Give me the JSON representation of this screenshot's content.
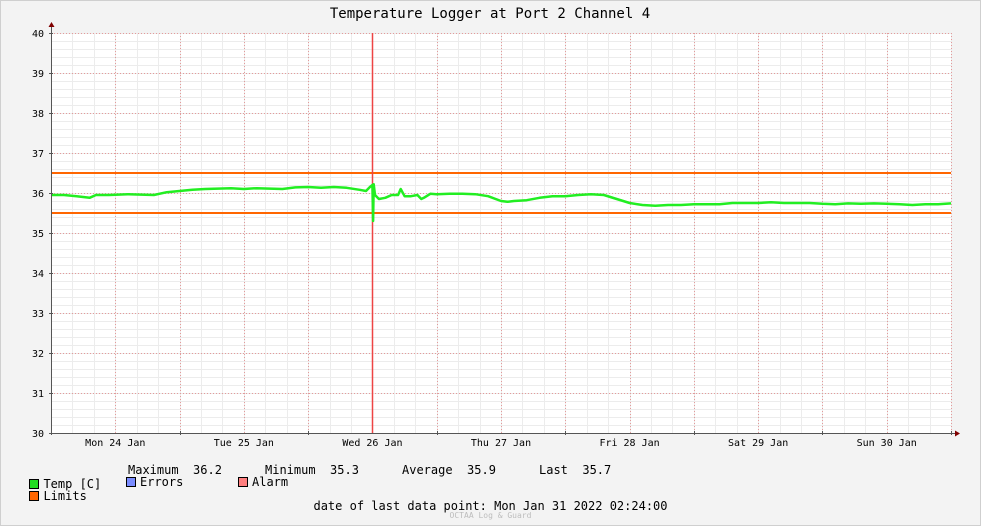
{
  "chart_data": {
    "type": "line",
    "title": "Temperature Logger at Port 2 Channel 4",
    "ylim": [
      30,
      40
    ],
    "y_ticks": [
      30,
      31,
      32,
      33,
      34,
      35,
      36,
      37,
      38,
      39,
      40
    ],
    "x_labels": [
      "Mon 24 Jan",
      "Tue 25 Jan",
      "Wed 26 Jan",
      "Thu 27 Jan",
      "Fri 28 Jan",
      "Sat 29 Jan",
      "Sun 30 Jan"
    ],
    "x_days_range": [
      0,
      7
    ],
    "limits": [
      35.5,
      36.5
    ],
    "alarm_event_day": 2.5,
    "series": [
      {
        "name": "Temp [C]",
        "x_days": [
          0.0,
          0.1,
          0.2,
          0.3,
          0.35,
          0.45,
          0.6,
          0.8,
          0.9,
          1.0,
          1.1,
          1.2,
          1.4,
          1.5,
          1.6,
          1.8,
          1.9,
          2.0,
          2.1,
          2.2,
          2.3,
          2.4,
          2.45,
          2.48,
          2.5,
          2.505,
          2.51,
          2.52,
          2.55,
          2.6,
          2.65,
          2.7,
          2.72,
          2.75,
          2.8,
          2.85,
          2.88,
          2.9,
          2.95,
          3.0,
          3.1,
          3.2,
          3.3,
          3.4,
          3.5,
          3.55,
          3.6,
          3.7,
          3.8,
          3.9,
          4.0,
          4.1,
          4.2,
          4.3,
          4.4,
          4.5,
          4.6,
          4.7,
          4.8,
          4.9,
          5.0,
          5.1,
          5.2,
          5.3,
          5.4,
          5.5,
          5.6,
          5.7,
          5.8,
          5.9,
          6.0,
          6.1,
          6.2,
          6.3,
          6.4,
          6.5,
          6.6,
          6.7,
          6.8,
          6.9,
          7.0
        ],
        "values": [
          35.95,
          35.95,
          35.92,
          35.88,
          35.95,
          35.95,
          35.97,
          35.95,
          36.02,
          36.05,
          36.08,
          36.1,
          36.12,
          36.1,
          36.12,
          36.1,
          36.14,
          36.15,
          36.13,
          36.15,
          36.13,
          36.08,
          36.05,
          36.15,
          36.2,
          35.3,
          36.22,
          35.95,
          35.85,
          35.88,
          35.95,
          35.95,
          36.1,
          35.92,
          35.92,
          35.95,
          35.85,
          35.88,
          35.98,
          35.97,
          35.98,
          35.98,
          35.97,
          35.92,
          35.8,
          35.78,
          35.8,
          35.82,
          35.88,
          35.92,
          35.92,
          35.95,
          35.97,
          35.95,
          35.85,
          35.75,
          35.7,
          35.68,
          35.7,
          35.7,
          35.72,
          35.72,
          35.72,
          35.75,
          35.75,
          35.75,
          35.77,
          35.75,
          35.75,
          35.75,
          35.73,
          35.72,
          35.74,
          35.73,
          35.74,
          35.73,
          35.72,
          35.7,
          35.72,
          35.72,
          35.74
        ]
      }
    ],
    "colors": {
      "temp": "#22ee22",
      "limits": "#ff6600",
      "alarm_line": "#ee4444",
      "grid": "#e49a9a",
      "axis": "#800000"
    }
  },
  "legend": {
    "temp_label": "Temp [C]",
    "limits_label": "Limits",
    "errors_label": "Errors",
    "alarm_label": "Alarm",
    "maximum_label": "Maximum",
    "maximum_value": "36.2",
    "minimum_label": "Minimum",
    "minimum_value": "35.3",
    "average_label": "Average",
    "average_value": "35.9",
    "last_label": "Last",
    "last_value": "35.7",
    "colors": {
      "temp": "#22dd22",
      "limits": "#ff6600",
      "errors": "#7a8cff",
      "alarm": "#ff7f7f"
    }
  },
  "footer": {
    "last_point_label": "date of last data point:",
    "last_point_value": "Mon Jan 31 2022 02:24:00",
    "watermark": "OCTAA Log & Guard"
  }
}
